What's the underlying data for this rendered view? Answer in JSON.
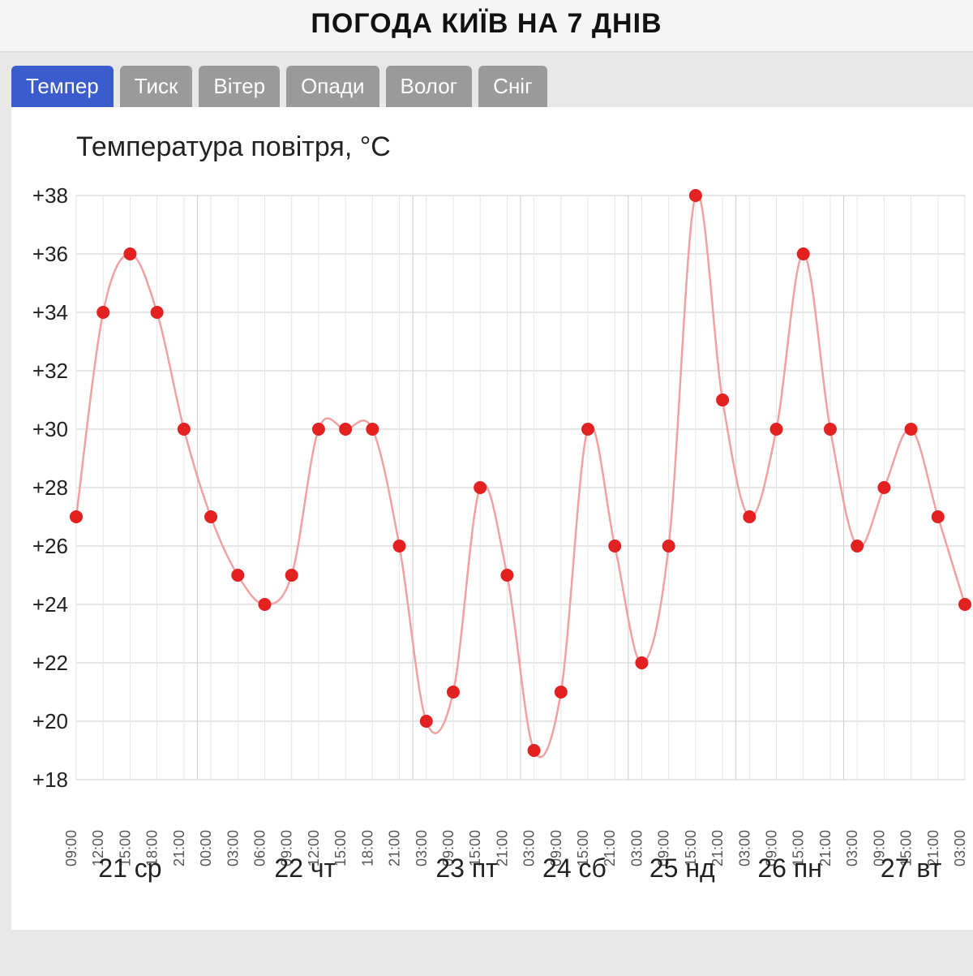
{
  "header": {
    "title": "ПОГОДА КИЇВ НА 7 ДНІВ"
  },
  "tabs": [
    {
      "label": "Темпер",
      "active": true
    },
    {
      "label": "Тиск",
      "active": false
    },
    {
      "label": "Вітер",
      "active": false
    },
    {
      "label": "Опади",
      "active": false
    },
    {
      "label": "Волог",
      "active": false
    },
    {
      "label": "Сніг",
      "active": false
    }
  ],
  "chart": {
    "type": "line",
    "title": "Температура повітря, °C",
    "line_color": "#f0a1a1",
    "marker_color": "#e32121",
    "marker_radius": 8,
    "line_width": 2.5,
    "background_color": "#ffffff",
    "grid_color_major": "#cccccc",
    "grid_color_minor": "#e6e6e6",
    "ylim": [
      18,
      38
    ],
    "ytick_step": 2,
    "ytick_prefix": "+",
    "title_fontsize": 34,
    "ylabel_fontsize": 26,
    "xlabel_time_fontsize": 18,
    "xlabel_day_fontsize": 32,
    "days": [
      {
        "label": "21 ср",
        "start_index": 0
      },
      {
        "label": "22 чт",
        "start_index": 5
      },
      {
        "label": "23 пт",
        "start_index": 13
      },
      {
        "label": "24 сб",
        "start_index": 17
      },
      {
        "label": "25 нд",
        "start_index": 21
      },
      {
        "label": "26 пн",
        "start_index": 25
      },
      {
        "label": "27 вт",
        "start_index": 29
      }
    ],
    "points": [
      {
        "time": "09:00",
        "value": 27
      },
      {
        "time": "12:00",
        "value": 34
      },
      {
        "time": "15:00",
        "value": 36
      },
      {
        "time": "18:00",
        "value": 34
      },
      {
        "time": "21:00",
        "value": 30
      },
      {
        "time": "00:00",
        "value": 27
      },
      {
        "time": "03:00",
        "value": 25
      },
      {
        "time": "06:00",
        "value": 24
      },
      {
        "time": "09:00",
        "value": 25
      },
      {
        "time": "12:00",
        "value": 30
      },
      {
        "time": "15:00",
        "value": 30
      },
      {
        "time": "18:00",
        "value": 30
      },
      {
        "time": "21:00",
        "value": 26
      },
      {
        "time": "03:00",
        "value": 20
      },
      {
        "time": "09:00",
        "value": 21
      },
      {
        "time": "15:00",
        "value": 28
      },
      {
        "time": "21:00",
        "value": 25
      },
      {
        "time": "03:00",
        "value": 19
      },
      {
        "time": "09:00",
        "value": 21
      },
      {
        "time": "15:00",
        "value": 30
      },
      {
        "time": "21:00",
        "value": 26
      },
      {
        "time": "03:00",
        "value": 22
      },
      {
        "time": "09:00",
        "value": 26
      },
      {
        "time": "15:00",
        "value": 38
      },
      {
        "time": "21:00",
        "value": 31
      },
      {
        "time": "03:00",
        "value": 27
      },
      {
        "time": "09:00",
        "value": 30
      },
      {
        "time": "15:00",
        "value": 36
      },
      {
        "time": "21:00",
        "value": 30
      },
      {
        "time": "03:00",
        "value": 26
      },
      {
        "time": "09:00",
        "value": 28
      },
      {
        "time": "15:00",
        "value": 30
      },
      {
        "time": "21:00",
        "value": 27
      },
      {
        "time": "03:00",
        "value": 24
      }
    ]
  }
}
